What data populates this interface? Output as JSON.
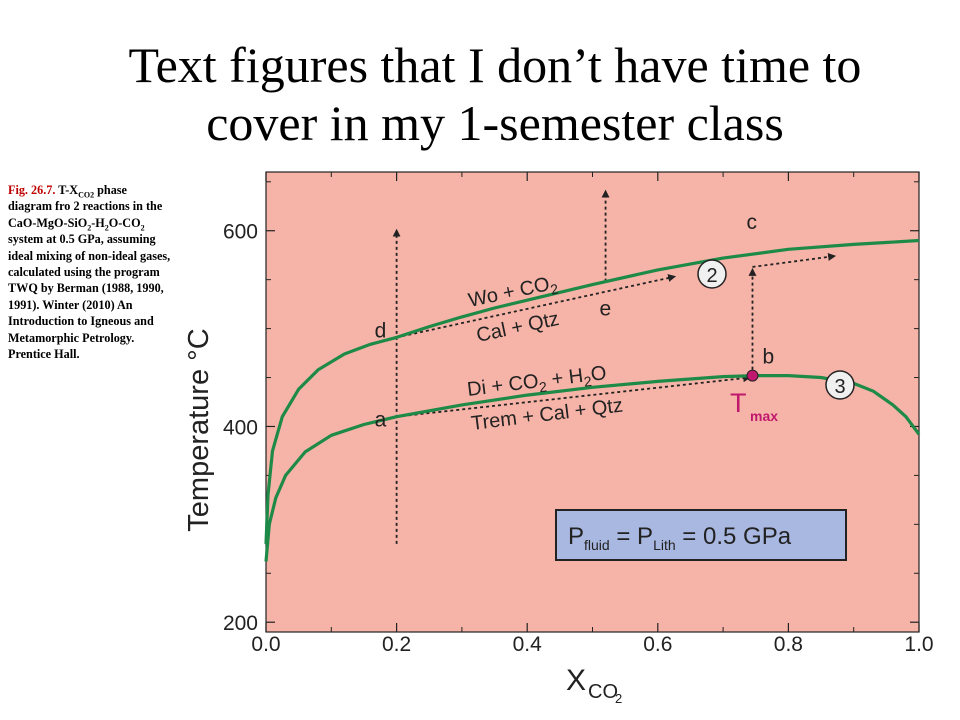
{
  "slide": {
    "title_line1": "Text figures that I don’t have time to",
    "title_line2": "cover in my 1-semester class"
  },
  "caption": {
    "fig_ref": "Fig. 26.7.",
    "part1": " T-X",
    "part1_sub": "CO2",
    "part2": " phase diagram fro 2 reactions in the CaO-MgO-SiO",
    "part2_sub": "2",
    "part3": "-H",
    "part3_sub": "2",
    "part4": "O-CO",
    "part4_sub": "2",
    "part5": " system at 0.5 GPa, assuming ideal mixing of non-ideal gases, calculated using the program TWQ by Berman (1988, 1990, 1991). Winter (2010) An Introduction to Igneous and Metamorphic Petrology. Prentice Hall."
  },
  "colors": {
    "plot_bg": "#f6b3a7",
    "curve": "#1e8a48",
    "tmax": "#c0186e",
    "pressure_box": "#a9b8e1",
    "marker_fill": "#f0f0f0"
  },
  "chart_data": {
    "type": "line",
    "xlabel": "X",
    "xlabel_sub": "CO",
    "xlabel_subsub": "2",
    "ylabel": "Temperature °C",
    "xlim": [
      0.0,
      1.0
    ],
    "ylim": [
      190,
      660
    ],
    "x_ticks": [
      "0.0",
      "0.2",
      "0.4",
      "0.6",
      "0.8",
      "1.0"
    ],
    "y_ticks": [
      "200",
      "400",
      "600"
    ],
    "series": [
      {
        "reaction_id": "2",
        "products": "Wo + CO",
        "products_sub": "2",
        "reactants": "Cal + Qtz",
        "x": [
          0.0,
          0.003,
          0.01,
          0.025,
          0.05,
          0.08,
          0.12,
          0.16,
          0.2,
          0.25,
          0.3,
          0.35,
          0.4,
          0.5,
          0.6,
          0.7,
          0.8,
          0.9,
          1.0
        ],
        "y": [
          280,
          330,
          375,
          410,
          438,
          458,
          474,
          484,
          491,
          502,
          512,
          521,
          529,
          545,
          560,
          572,
          581,
          586,
          590
        ]
      },
      {
        "reaction_id": "3",
        "products": "Di + CO",
        "products_sub": "2",
        "products_tail": " + H",
        "products_tail_sub": "2",
        "products_end": "O",
        "reactants": "Trem + Cal + Qtz",
        "x": [
          0.0,
          0.005,
          0.015,
          0.03,
          0.06,
          0.1,
          0.15,
          0.2,
          0.3,
          0.4,
          0.5,
          0.6,
          0.7,
          0.75,
          0.8,
          0.85,
          0.9,
          0.93,
          0.96,
          0.98,
          1.0
        ],
        "y": [
          262,
          300,
          327,
          350,
          374,
          391,
          402,
          410,
          422,
          432,
          440,
          446,
          451,
          452,
          452,
          450,
          444,
          436,
          422,
          410,
          392
        ]
      }
    ],
    "tmax": {
      "label": "T",
      "label_sub": "max",
      "x": 0.745,
      "y": 452
    },
    "points": [
      {
        "label": "a",
        "x": 0.2,
        "y": 410
      },
      {
        "label": "b",
        "x": 0.745,
        "y": 452
      },
      {
        "label": "c",
        "x": 0.745,
        "y": 563
      },
      {
        "label": "d",
        "x": 0.2,
        "y": 491
      },
      {
        "label": "e",
        "x": 0.52,
        "y": 548
      }
    ],
    "paths": [
      {
        "name": "path-a-to-d",
        "from": [
          0.2,
          280
        ],
        "to": [
          0.2,
          600
        ]
      },
      {
        "name": "path-d-to-e",
        "from": [
          0.2,
          491
        ],
        "to": [
          0.625,
          553
        ]
      },
      {
        "name": "path-e-vertical",
        "from": [
          0.52,
          548
        ],
        "to": [
          0.52,
          640
        ]
      },
      {
        "name": "path-a-to-b",
        "from": [
          0.2,
          410
        ],
        "to": [
          0.74,
          450
        ]
      },
      {
        "name": "path-b-to-c",
        "from": [
          0.745,
          452
        ],
        "to": [
          0.745,
          560
        ]
      },
      {
        "name": "path-c-horizontal",
        "from": [
          0.745,
          563
        ],
        "to": [
          0.87,
          574
        ]
      }
    ],
    "pressure_label": {
      "p1": "P",
      "p1_sub": "fluid",
      "eq1": " = P",
      "p2_sub": "Lith",
      "eq2": " = 0.5 GPa"
    }
  }
}
